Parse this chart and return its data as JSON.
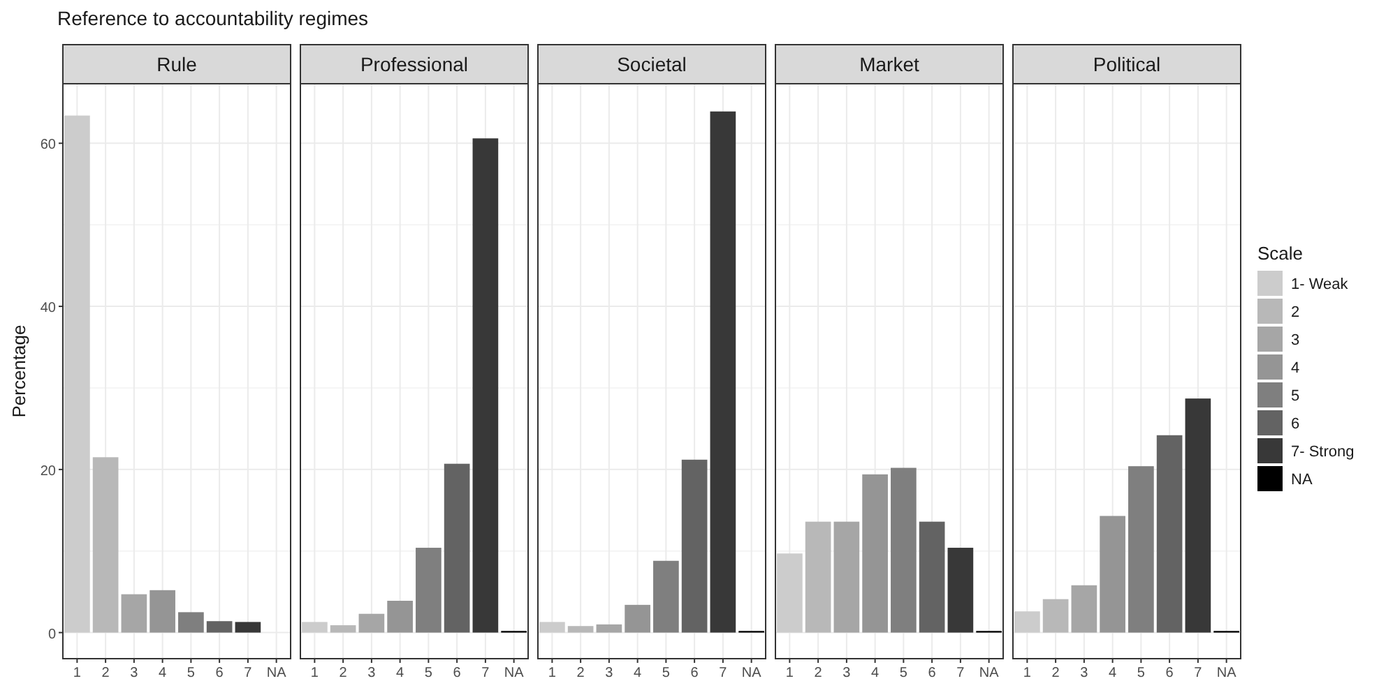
{
  "chart_data": [
    {
      "type": "bar",
      "title": "Rule",
      "annotations": [
        "Reference to accountability regimes"
      ],
      "ylabel": "Percentage",
      "categories": [
        "1",
        "2",
        "3",
        "4",
        "5",
        "6",
        "7",
        "NA"
      ],
      "ylim": [
        -3.2,
        67.3
      ],
      "yticks": [
        0,
        20,
        40,
        60
      ],
      "grid": true,
      "legend": false,
      "series": [
        {
          "color": "#cccccc",
          "values": [
            63.4,
            null,
            null,
            null,
            null,
            null,
            null,
            null
          ]
        },
        {
          "color": "#b8b8b8",
          "values": [
            null,
            21.5,
            null,
            null,
            null,
            null,
            null,
            null
          ]
        },
        {
          "color": "#a6a6a6",
          "values": [
            null,
            null,
            4.7,
            null,
            null,
            null,
            null,
            null
          ]
        },
        {
          "color": "#959595",
          "values": [
            null,
            null,
            null,
            5.2,
            null,
            null,
            null,
            null
          ]
        },
        {
          "color": "#7f7f7f",
          "values": [
            null,
            null,
            null,
            null,
            2.5,
            null,
            null,
            null
          ]
        },
        {
          "color": "#636363",
          "values": [
            null,
            null,
            null,
            null,
            null,
            1.4,
            null,
            null
          ]
        },
        {
          "color": "#383838",
          "values": [
            null,
            null,
            null,
            null,
            null,
            null,
            1.3,
            null
          ]
        }
      ]
    },
    {
      "type": "bar",
      "title": "Professional",
      "categories": [
        "1",
        "2",
        "3",
        "4",
        "5",
        "6",
        "7",
        "NA"
      ],
      "ylim": [
        -3.2,
        67.3
      ],
      "yticks": [
        0,
        20,
        40,
        60
      ],
      "tick_labels": "x",
      "grid": true,
      "legend": false,
      "series": [
        {
          "color": "#cccccc",
          "values": [
            1.3,
            null,
            null,
            null,
            null,
            null,
            null,
            null
          ]
        },
        {
          "color": "#b8b8b8",
          "values": [
            null,
            0.9,
            null,
            null,
            null,
            null,
            null,
            null
          ]
        },
        {
          "color": "#a6a6a6",
          "values": [
            null,
            null,
            2.3,
            null,
            null,
            null,
            null,
            null
          ]
        },
        {
          "color": "#959595",
          "values": [
            null,
            null,
            null,
            3.9,
            null,
            null,
            null,
            null
          ]
        },
        {
          "color": "#7f7f7f",
          "values": [
            null,
            null,
            null,
            null,
            10.4,
            null,
            null,
            null
          ]
        },
        {
          "color": "#636363",
          "values": [
            null,
            null,
            null,
            null,
            null,
            20.7,
            null,
            null
          ]
        },
        {
          "color": "#383838",
          "values": [
            null,
            null,
            null,
            null,
            null,
            null,
            60.6,
            null
          ]
        },
        {
          "color": "#000000",
          "values": [
            null,
            null,
            null,
            null,
            null,
            null,
            null,
            0.2
          ]
        }
      ]
    },
    {
      "type": "bar",
      "title": "Societal",
      "categories": [
        "1",
        "2",
        "3",
        "4",
        "5",
        "6",
        "7",
        "NA"
      ],
      "ylim": [
        -3.2,
        67.3
      ],
      "yticks": [
        0,
        20,
        40,
        60
      ],
      "tick_labels": "x",
      "grid": true,
      "legend": false,
      "series": [
        {
          "color": "#cccccc",
          "values": [
            1.3,
            null,
            null,
            null,
            null,
            null,
            null,
            null
          ]
        },
        {
          "color": "#b8b8b8",
          "values": [
            null,
            0.8,
            null,
            null,
            null,
            null,
            null,
            null
          ]
        },
        {
          "color": "#a6a6a6",
          "values": [
            null,
            null,
            1.0,
            null,
            null,
            null,
            null,
            null
          ]
        },
        {
          "color": "#959595",
          "values": [
            null,
            null,
            null,
            3.4,
            null,
            null,
            null,
            null
          ]
        },
        {
          "color": "#7f7f7f",
          "values": [
            null,
            null,
            null,
            null,
            8.8,
            null,
            null,
            null
          ]
        },
        {
          "color": "#636363",
          "values": [
            null,
            null,
            null,
            null,
            null,
            21.2,
            null,
            null
          ]
        },
        {
          "color": "#383838",
          "values": [
            null,
            null,
            null,
            null,
            null,
            null,
            63.9,
            null
          ]
        },
        {
          "color": "#000000",
          "values": [
            null,
            null,
            null,
            null,
            null,
            null,
            null,
            0.2
          ]
        }
      ]
    },
    {
      "type": "bar",
      "title": "Market",
      "categories": [
        "1",
        "2",
        "3",
        "4",
        "5",
        "6",
        "7",
        "NA"
      ],
      "ylim": [
        -3.2,
        67.3
      ],
      "yticks": [
        0,
        20,
        40,
        60
      ],
      "tick_labels": "x",
      "grid": true,
      "legend": false,
      "series": [
        {
          "color": "#cccccc",
          "values": [
            9.7,
            null,
            null,
            null,
            null,
            null,
            null,
            null
          ]
        },
        {
          "color": "#b8b8b8",
          "values": [
            null,
            13.6,
            null,
            null,
            null,
            null,
            null,
            null
          ]
        },
        {
          "color": "#a6a6a6",
          "values": [
            null,
            null,
            13.6,
            null,
            null,
            null,
            null,
            null
          ]
        },
        {
          "color": "#959595",
          "values": [
            null,
            null,
            null,
            19.4,
            null,
            null,
            null,
            null
          ]
        },
        {
          "color": "#7f7f7f",
          "values": [
            null,
            null,
            null,
            null,
            20.2,
            null,
            null,
            null
          ]
        },
        {
          "color": "#636363",
          "values": [
            null,
            null,
            null,
            null,
            null,
            13.6,
            null,
            null
          ]
        },
        {
          "color": "#383838",
          "values": [
            null,
            null,
            null,
            null,
            null,
            null,
            10.4,
            null
          ]
        },
        {
          "color": "#000000",
          "values": [
            null,
            null,
            null,
            null,
            null,
            null,
            null,
            0.2
          ]
        }
      ]
    },
    {
      "type": "bar",
      "title": "Political",
      "categories": [
        "1",
        "2",
        "3",
        "4",
        "5",
        "6",
        "7",
        "NA"
      ],
      "ylim": [
        -3.2,
        67.3
      ],
      "yticks": [
        0,
        20,
        40,
        60
      ],
      "tick_labels": "x",
      "grid": true,
      "legend": "right",
      "legend_title": "Scale",
      "series": [
        {
          "name": "1- Weak",
          "color": "#cccccc",
          "values": [
            2.6,
            null,
            null,
            null,
            null,
            null,
            null,
            null
          ]
        },
        {
          "name": "2",
          "color": "#b8b8b8",
          "values": [
            null,
            4.1,
            null,
            null,
            null,
            null,
            null,
            null
          ]
        },
        {
          "name": "3",
          "color": "#a6a6a6",
          "values": [
            null,
            null,
            5.8,
            null,
            null,
            null,
            null,
            null
          ]
        },
        {
          "name": "4",
          "color": "#959595",
          "values": [
            null,
            null,
            null,
            14.3,
            null,
            null,
            null,
            null
          ]
        },
        {
          "name": "5",
          "color": "#7f7f7f",
          "values": [
            null,
            null,
            null,
            null,
            20.4,
            null,
            null,
            null
          ]
        },
        {
          "name": "6",
          "color": "#636363",
          "values": [
            null,
            null,
            null,
            null,
            null,
            24.2,
            null,
            null
          ]
        },
        {
          "name": "7- Strong",
          "color": "#383838",
          "values": [
            null,
            null,
            null,
            null,
            null,
            null,
            28.7,
            null
          ]
        },
        {
          "name": "NA",
          "color": "#000000",
          "values": [
            null,
            null,
            null,
            null,
            null,
            null,
            null,
            0.2
          ]
        }
      ]
    }
  ]
}
